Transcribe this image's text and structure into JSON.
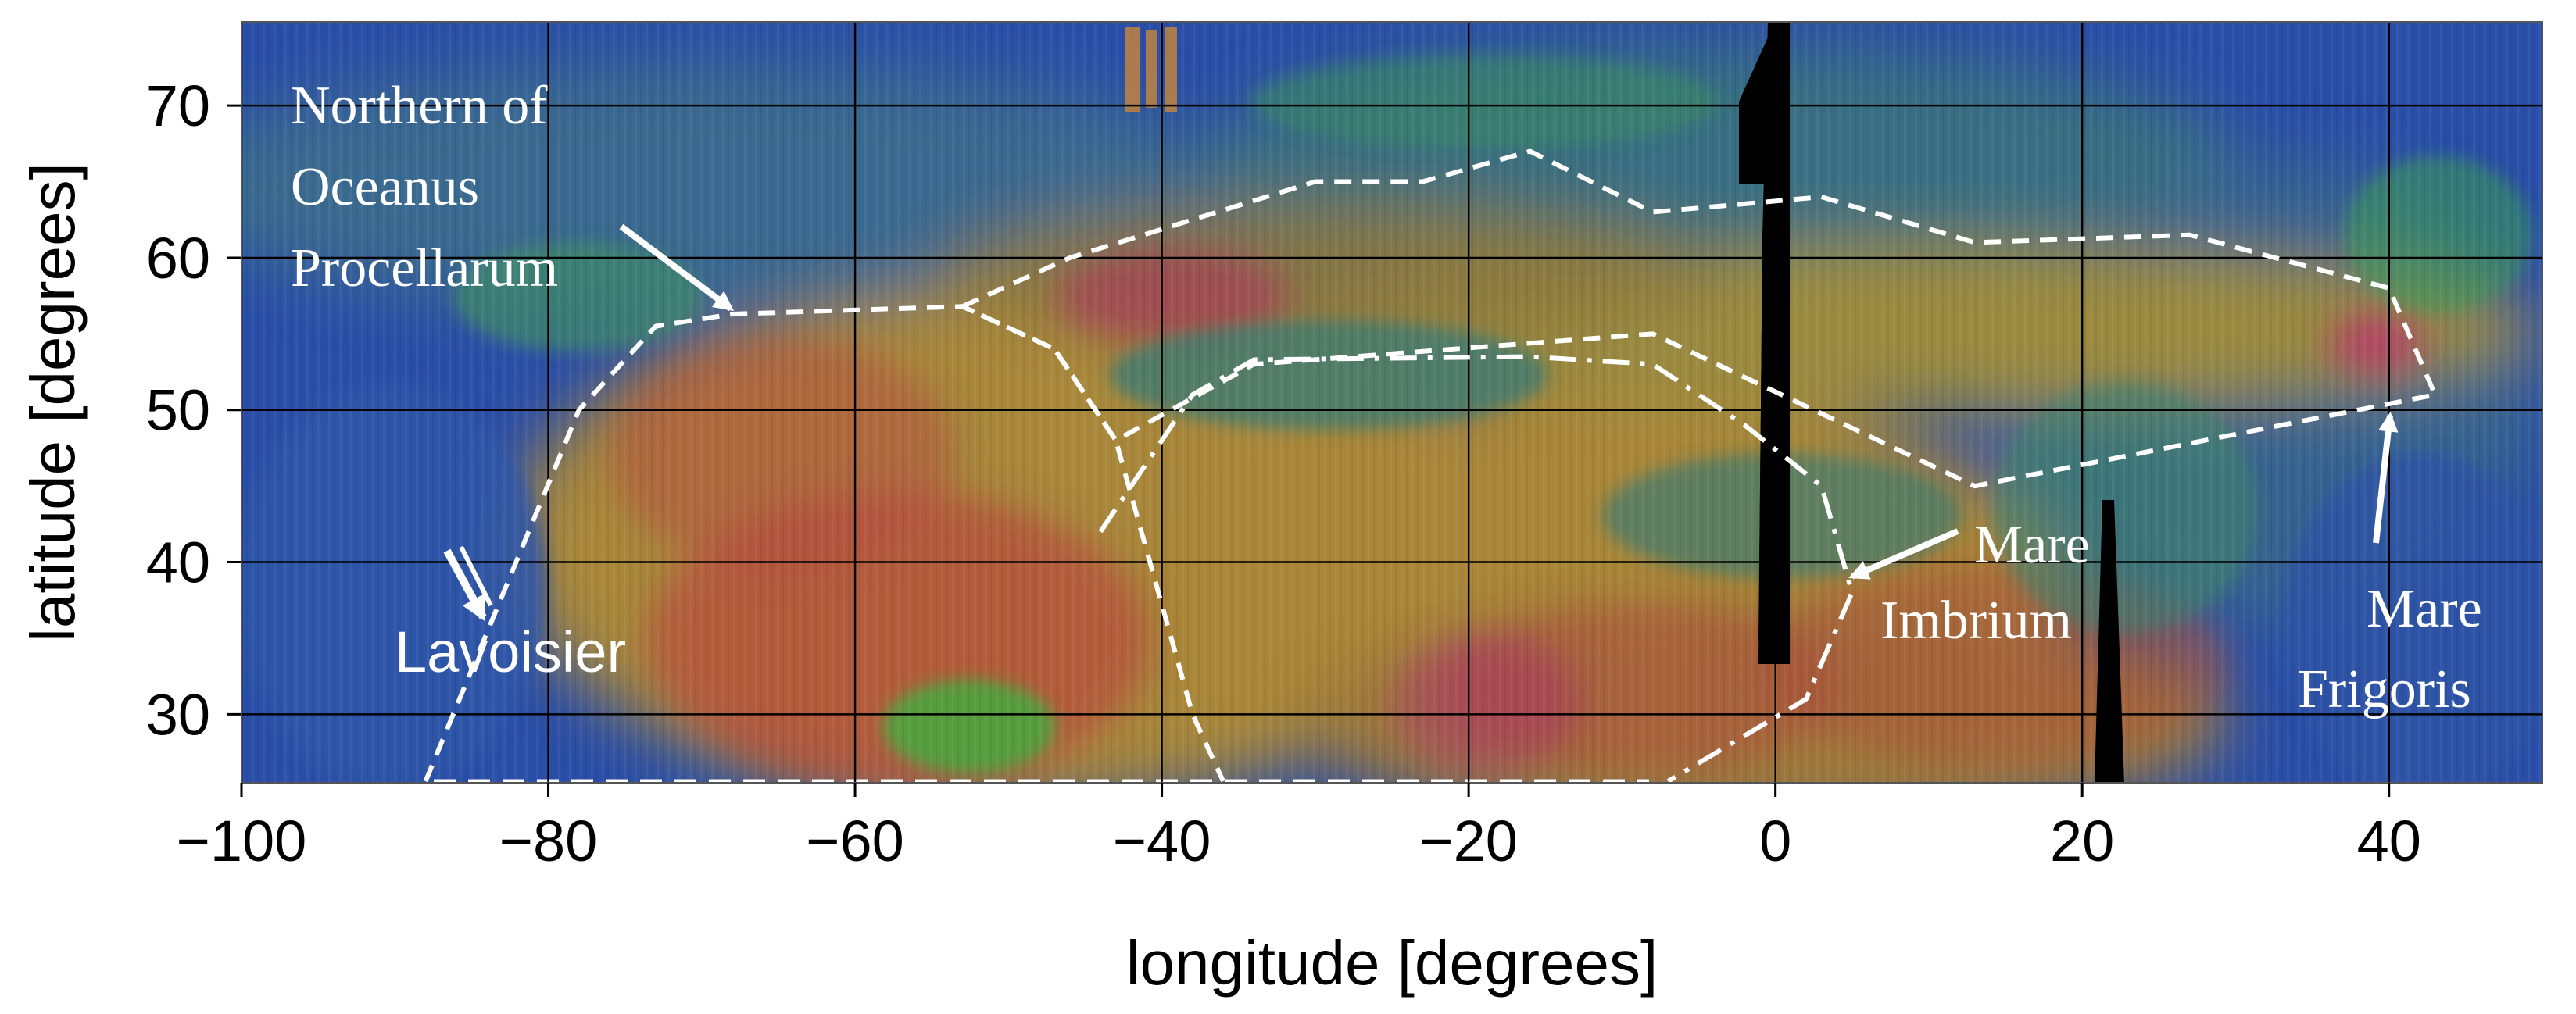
{
  "chart_data": {
    "type": "heatmap",
    "xlabel": "longitude [degrees]",
    "ylabel": "latitude [degrees]",
    "xlim": [
      -100,
      50
    ],
    "ylim": [
      25.5,
      75.5
    ],
    "x_ticks": [
      -100,
      -80,
      -60,
      -40,
      -20,
      0,
      20,
      40
    ],
    "y_ticks": [
      30,
      40,
      50,
      60,
      70
    ],
    "grid": true,
    "colors": {
      "background": "#2b4fa8",
      "mare_orange": "#b9892e",
      "red": "#b83a3a",
      "green": "#3aa84a",
      "teal": "#3f7d72",
      "outline": "#ffffff",
      "data_gap": "#000000"
    },
    "regions": [
      {
        "name": "Northern of Oceanus Procellarum",
        "label_lines": [
          "Northern of",
          "Oceanus",
          "Procellarum"
        ],
        "style": "dashed",
        "boundary": [
          [
            -88,
            25.6
          ],
          [
            -78,
            50
          ],
          [
            -73,
            55.5
          ],
          [
            -68,
            56.3
          ],
          [
            -53,
            56.8
          ],
          [
            -47,
            54
          ],
          [
            -43,
            48
          ],
          [
            -38,
            30
          ],
          [
            -36,
            25.6
          ]
        ]
      },
      {
        "name": "Mare Frigoris",
        "label_lines": [
          "Mare",
          "Frigoris"
        ],
        "style": "dashed",
        "boundary": [
          [
            -53,
            56.8
          ],
          [
            -46,
            60
          ],
          [
            -30,
            65
          ],
          [
            -23,
            65
          ],
          [
            -16,
            67
          ],
          [
            -8,
            63
          ],
          [
            3,
            64
          ],
          [
            13,
            61
          ],
          [
            27,
            61.5
          ],
          [
            40,
            58
          ],
          [
            43,
            51
          ],
          [
            13,
            45
          ],
          [
            -8,
            55
          ],
          [
            -34,
            53
          ],
          [
            -43,
            48
          ],
          [
            -47,
            54
          ],
          [
            -53,
            56.8
          ]
        ]
      },
      {
        "name": "Mare Imbrium",
        "label_lines": [
          "Mare",
          "Imbrium"
        ],
        "style": "dash-dot",
        "boundary": [
          [
            -44,
            42
          ],
          [
            -38,
            51
          ],
          [
            -34,
            53.3
          ],
          [
            -16,
            53.5
          ],
          [
            -8,
            53
          ],
          [
            -2,
            49
          ],
          [
            3,
            45
          ],
          [
            5,
            38
          ],
          [
            2,
            31
          ],
          [
            -7,
            25.6
          ]
        ]
      }
    ],
    "annotations": [
      {
        "text": "Lavoisier",
        "lon": -85,
        "lat": 35
      }
    ]
  }
}
